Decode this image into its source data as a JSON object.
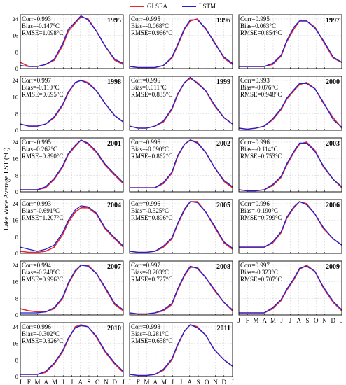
{
  "chart_data": {
    "type": "line",
    "ylabel": "Lake Wide Average LST (°C)",
    "ylim": [
      0,
      26
    ],
    "yticks": [
      0,
      8,
      16,
      24
    ],
    "x_tick_labels": [
      "J",
      "F",
      "M",
      "A",
      "M",
      "J",
      "J",
      "A",
      "S",
      "O",
      "N",
      "D",
      "J"
    ],
    "grid": true,
    "legend": {
      "placement": "top-center",
      "entries": [
        "GLSEA",
        "LSTM"
      ]
    },
    "series_colors": {
      "GLSEA": "#e8262b",
      "LSTM": "#1f1fd6"
    },
    "panels": [
      {
        "year": "1995",
        "corr": "Corr=0.993",
        "bias": "Bias=-0.147°C",
        "rmse": "RMSE=1.098°C",
        "x": [
          0,
          30,
          60,
          90,
          120,
          150,
          170,
          195,
          215,
          240,
          270,
          300,
          335,
          365
        ],
        "glsea": [
          3,
          1,
          1,
          2,
          4,
          11,
          18,
          22,
          25,
          24,
          18,
          11,
          4,
          2
        ],
        "lstm": [
          1.5,
          1,
          1,
          2,
          4.5,
          12,
          19,
          22.5,
          25.5,
          23.5,
          18,
          11,
          4.5,
          2.5
        ]
      },
      {
        "year": "1996",
        "corr": "Corr=0.995",
        "bias": "Bias=-0.068°C",
        "rmse": "RMSE=0.966°C",
        "x": [
          0,
          30,
          60,
          90,
          120,
          150,
          170,
          195,
          215,
          240,
          270,
          300,
          335,
          365
        ],
        "glsea": [
          1,
          0.5,
          0.5,
          0.5,
          1.5,
          5,
          11,
          19,
          23,
          24,
          19,
          13,
          5,
          2
        ],
        "lstm": [
          1,
          0.5,
          0.5,
          0.5,
          1.5,
          5.5,
          11.5,
          19.5,
          23.5,
          23.5,
          19.5,
          12.5,
          5.5,
          2.5
        ]
      },
      {
        "year": "1997",
        "corr": "Corr=0.995",
        "bias": "Bias=0.063°C",
        "rmse": "RMSE=0.854°C",
        "x": [
          0,
          30,
          60,
          90,
          120,
          150,
          170,
          195,
          215,
          240,
          270,
          300,
          335,
          365
        ],
        "glsea": [
          1,
          1,
          1,
          1,
          2,
          6,
          13,
          19,
          23,
          23,
          20,
          13,
          5,
          3
        ],
        "lstm": [
          1,
          1,
          1,
          1,
          2.5,
          6.5,
          13.5,
          20,
          23,
          23,
          19.5,
          13.5,
          5.5,
          3
        ]
      },
      {
        "year": "1998",
        "corr": "Corr=0.997",
        "bias": "Bias=-0.110°C",
        "rmse": "RMSE=0.695°C",
        "x": [
          0,
          30,
          60,
          90,
          120,
          150,
          170,
          195,
          215,
          240,
          270,
          300,
          335,
          365
        ],
        "glsea": [
          3,
          2,
          2,
          3,
          6,
          12,
          18,
          23,
          24,
          23,
          19,
          13,
          7,
          4
        ],
        "lstm": [
          3,
          2,
          2,
          3,
          6.5,
          12.5,
          18.5,
          23,
          24,
          22.5,
          19,
          13,
          7,
          4
        ]
      },
      {
        "year": "1999",
        "corr": "Corr=0.996",
        "bias": "Bias=0.011°C",
        "rmse": "RMSE=0.835°C",
        "x": [
          0,
          30,
          60,
          90,
          120,
          150,
          170,
          195,
          215,
          240,
          270,
          300,
          335,
          365
        ],
        "glsea": [
          2,
          1,
          1,
          2,
          4,
          10,
          17,
          23,
          25,
          23,
          19,
          12,
          6,
          3
        ],
        "lstm": [
          2,
          1,
          1,
          2,
          4.5,
          10.5,
          17.5,
          23,
          25.5,
          22.5,
          19,
          12.5,
          6,
          3
        ]
      },
      {
        "year": "2000",
        "corr": "Corr=0.993",
        "bias": "Bias=-0.076°C",
        "rmse": "RMSE=0.948°C",
        "x": [
          0,
          30,
          60,
          90,
          120,
          150,
          170,
          195,
          215,
          240,
          270,
          300,
          335,
          365
        ],
        "glsea": [
          1,
          0.5,
          1,
          2,
          5,
          10,
          15,
          19,
          22,
          23,
          20,
          13,
          6,
          1
        ],
        "lstm": [
          1,
          0.5,
          1,
          2,
          5.5,
          10.5,
          15.5,
          19.5,
          22.5,
          22.5,
          20,
          13.5,
          5,
          1.5
        ]
      },
      {
        "year": "2001",
        "corr": "Corr=0.995",
        "bias": "Bias=0.262°C",
        "rmse": "RMSE=0.890°C",
        "x": [
          0,
          30,
          60,
          90,
          120,
          150,
          170,
          195,
          215,
          240,
          270,
          300,
          335,
          365
        ],
        "glsea": [
          1,
          1,
          1,
          2,
          6,
          12,
          18,
          22,
          25,
          23,
          19,
          13,
          8,
          4
        ],
        "lstm": [
          1,
          1,
          1,
          2.5,
          6.5,
          12.5,
          18.5,
          22.5,
          25,
          23.5,
          19.5,
          13.5,
          8.5,
          4.5
        ]
      },
      {
        "year": "2002",
        "corr": "Corr=0.996",
        "bias": "Bias=-0.090°C",
        "rmse": "RMSE=0.862°C",
        "x": [
          0,
          30,
          60,
          90,
          120,
          150,
          170,
          195,
          215,
          240,
          270,
          300,
          335,
          365
        ],
        "glsea": [
          2,
          2,
          2,
          2,
          4,
          9,
          17,
          23,
          25,
          24,
          19,
          12,
          5,
          2
        ],
        "lstm": [
          2,
          2,
          2,
          2,
          4.5,
          9.5,
          17.5,
          23,
          25,
          23.5,
          19,
          12,
          5.5,
          2.5
        ]
      },
      {
        "year": "2003",
        "corr": "Corr=0.996",
        "bias": "Bias=-0.114°C",
        "rmse": "RMSE=0.753°C",
        "x": [
          0,
          30,
          60,
          90,
          120,
          150,
          170,
          195,
          215,
          240,
          270,
          300,
          335,
          365
        ],
        "glsea": [
          1,
          0.5,
          0.5,
          1,
          3,
          7,
          13,
          19,
          23,
          24,
          20,
          12,
          6,
          2
        ],
        "lstm": [
          1,
          0.5,
          0.5,
          1,
          3.5,
          7.5,
          13.5,
          19.5,
          23.5,
          23.5,
          19.5,
          12.5,
          6,
          2.5
        ]
      },
      {
        "year": "2004",
        "corr": "Corr=0.993",
        "bias": "Bias=-0.691°C",
        "rmse": "RMSE=1.207°C",
        "x": [
          0,
          30,
          60,
          90,
          120,
          150,
          170,
          195,
          215,
          240,
          270,
          300,
          335,
          365
        ],
        "glsea": [
          1,
          0.5,
          0.5,
          1,
          3,
          9,
          15,
          20,
          22,
          22,
          19,
          12,
          7,
          3
        ],
        "lstm": [
          3,
          2,
          1,
          2,
          4,
          10,
          16,
          21,
          23,
          22.5,
          19.5,
          12.5,
          7.5,
          3.5
        ]
      },
      {
        "year": "2005",
        "corr": "Corr=0.996",
        "bias": "Bias=-0.325°C",
        "rmse": "RMSE=0.896°C",
        "x": [
          0,
          30,
          60,
          90,
          120,
          150,
          170,
          195,
          215,
          240,
          270,
          300,
          335,
          365
        ],
        "glsea": [
          1,
          0.5,
          0.5,
          1,
          3,
          7,
          14,
          21,
          25,
          25,
          20,
          13,
          5,
          2
        ],
        "lstm": [
          1,
          0.5,
          0.5,
          1,
          3.5,
          7.5,
          14.5,
          21.5,
          25,
          24.5,
          20,
          13.5,
          5.5,
          2.5
        ]
      },
      {
        "year": "2006",
        "corr": "Corr=0.996",
        "bias": "Bias=-0.190°C",
        "rmse": "RMSE=0.799°C",
        "x": [
          0,
          30,
          60,
          90,
          120,
          150,
          170,
          195,
          215,
          240,
          270,
          300,
          335,
          365
        ],
        "glsea": [
          3,
          3,
          3,
          3,
          5,
          10,
          17,
          22,
          25,
          24,
          19,
          12,
          7,
          4
        ],
        "lstm": [
          3,
          3,
          3,
          3,
          5.5,
          10.5,
          17.5,
          22.5,
          25,
          23.5,
          19,
          12.5,
          7,
          4
        ]
      },
      {
        "year": "2007",
        "corr": "Corr=0.994",
        "bias": "Bias=-0.248°C",
        "rmse": "RMSE=0.996°C",
        "x": [
          0,
          30,
          60,
          90,
          120,
          150,
          170,
          195,
          215,
          240,
          270,
          300,
          335,
          365
        ],
        "glsea": [
          3,
          2,
          1.5,
          1.5,
          3,
          8,
          15,
          21,
          24,
          24,
          20,
          13,
          5,
          2
        ],
        "lstm": [
          1,
          1,
          1,
          1.5,
          3.5,
          8.5,
          15.5,
          21.5,
          24,
          23.5,
          20,
          13.5,
          5.5,
          2.5
        ]
      },
      {
        "year": "2008",
        "corr": "Corr=0.997",
        "bias": "Bias=-0.203°C",
        "rmse": "RMSE=0.727°C",
        "x": [
          0,
          30,
          60,
          90,
          120,
          150,
          170,
          195,
          215,
          240,
          270,
          300,
          335,
          365
        ],
        "glsea": [
          1,
          0.5,
          0.5,
          1,
          2,
          5,
          12,
          19,
          23,
          23,
          18,
          12,
          6,
          2
        ],
        "lstm": [
          1,
          0.5,
          0.5,
          1,
          2.5,
          5.5,
          12.5,
          19.5,
          23.5,
          22.5,
          18,
          12.5,
          6,
          2.5
        ]
      },
      {
        "year": "2009",
        "corr": "Corr=0.997",
        "bias": "Bias=-0.323°C",
        "rmse": "RMSE=0.707°C",
        "x": [
          0,
          30,
          60,
          90,
          120,
          150,
          170,
          195,
          215,
          240,
          270,
          300,
          335,
          365
        ],
        "glsea": [
          1,
          1,
          1,
          1,
          3,
          7,
          12,
          17,
          22,
          24,
          21,
          13,
          6,
          2
        ],
        "lstm": [
          1,
          1,
          1,
          1,
          3.5,
          7.5,
          12.5,
          17.5,
          22.5,
          23.5,
          21,
          13.5,
          6.5,
          2.5
        ]
      },
      {
        "year": "2010",
        "corr": "Corr=0.996",
        "bias": "Bias=-0.302°C",
        "rmse": "RMSE=0.826°C",
        "x": [
          0,
          30,
          60,
          90,
          120,
          150,
          170,
          195,
          215,
          240,
          270,
          300,
          335,
          365
        ],
        "glsea": [
          1,
          1,
          1,
          2,
          6,
          12,
          18,
          24,
          25,
          24,
          19,
          12,
          6,
          2
        ],
        "lstm": [
          1,
          1,
          1,
          2.5,
          6.5,
          12.5,
          18.5,
          23.5,
          24.5,
          24,
          19.5,
          12.5,
          6.5,
          2.5
        ]
      },
      {
        "year": "2011",
        "corr": "Corr=0.998",
        "bias": "Bias=-0.281°C",
        "rmse": "RMSE=0.658°C",
        "x": [
          0,
          30,
          60,
          90,
          120,
          150,
          170,
          195,
          215,
          240,
          270,
          300,
          335,
          365
        ],
        "glsea": [
          1,
          0.5,
          0.5,
          1,
          3,
          8,
          15,
          22,
          25,
          24,
          20,
          13,
          8,
          5
        ],
        "lstm": [
          1,
          0.5,
          0.5,
          1,
          3.5,
          8.5,
          15.5,
          22,
          25,
          23.5,
          20,
          13,
          8,
          5
        ]
      }
    ]
  }
}
